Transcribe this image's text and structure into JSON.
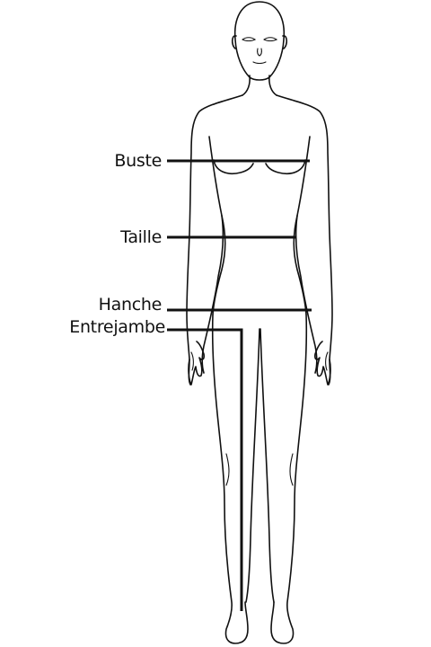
{
  "measurements": {
    "bust": "Buste",
    "waist": "Taille",
    "hip": "Hanche",
    "inseam": "Entrejambe"
  },
  "colors": {
    "line": "#111111",
    "background": "#ffffff"
  }
}
